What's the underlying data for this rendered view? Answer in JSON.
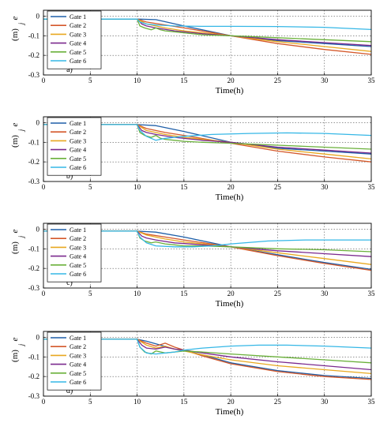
{
  "chart_data": [
    {
      "type": "line",
      "panel_label": "a)",
      "xlabel": "Time(h)",
      "ylabel_main": "e",
      "ylabel_sub": "j",
      "ylabel_unit": "(m)",
      "xlim": [
        0,
        35
      ],
      "ylim": [
        -0.3,
        0.03
      ],
      "xticks": [
        0,
        5,
        10,
        15,
        20,
        25,
        30,
        35
      ],
      "yticks": [
        0,
        -0.1,
        -0.2,
        -0.3
      ],
      "ytick_labels": [
        "0",
        "-0.1",
        "-0.2",
        "-0.3"
      ],
      "grid": true,
      "legend_position": "top-left",
      "series": [
        {
          "name": "Gate 1",
          "color": "#1f5fa8",
          "x": [
            0,
            6,
            10,
            12,
            15,
            20,
            25,
            30,
            35
          ],
          "y": [
            -0.015,
            -0.015,
            -0.015,
            -0.018,
            -0.05,
            -0.1,
            -0.125,
            -0.14,
            -0.155
          ]
        },
        {
          "name": "Gate 2",
          "color": "#d4582a",
          "x": [
            0,
            6,
            10,
            11,
            13,
            15,
            20,
            25,
            30,
            35
          ],
          "y": [
            -0.015,
            -0.015,
            -0.015,
            -0.03,
            -0.045,
            -0.06,
            -0.1,
            -0.14,
            -0.17,
            -0.195
          ]
        },
        {
          "name": "Gate 3",
          "color": "#e8a820",
          "x": [
            0,
            6,
            10,
            11,
            13,
            15,
            20,
            25,
            30,
            35
          ],
          "y": [
            -0.015,
            -0.015,
            -0.015,
            -0.04,
            -0.06,
            -0.075,
            -0.1,
            -0.13,
            -0.155,
            -0.18
          ]
        },
        {
          "name": "Gate 4",
          "color": "#7b2a8e",
          "x": [
            0,
            6,
            10,
            10.5,
            11,
            12,
            14,
            17,
            20,
            25,
            30,
            35
          ],
          "y": [
            -0.015,
            -0.015,
            -0.015,
            -0.04,
            -0.05,
            -0.06,
            -0.075,
            -0.09,
            -0.1,
            -0.12,
            -0.135,
            -0.15
          ]
        },
        {
          "name": "Gate 5",
          "color": "#6ab03a",
          "x": [
            0,
            6,
            10,
            10.3,
            10.8,
            11.5,
            12,
            12.5,
            13,
            14,
            15,
            17,
            20,
            25,
            30,
            35
          ],
          "y": [
            -0.015,
            -0.015,
            -0.015,
            -0.05,
            -0.06,
            -0.07,
            -0.06,
            -0.07,
            -0.075,
            -0.08,
            -0.085,
            -0.095,
            -0.1,
            -0.11,
            -0.12,
            -0.13
          ]
        },
        {
          "name": "Gate 6",
          "color": "#35b7e6",
          "x": [
            0,
            6,
            10,
            10.3,
            11,
            12,
            14,
            17,
            20,
            25,
            30,
            35
          ],
          "y": [
            -0.015,
            -0.015,
            -0.015,
            -0.03,
            -0.04,
            -0.045,
            -0.05,
            -0.052,
            -0.052,
            -0.053,
            -0.057,
            -0.068
          ]
        }
      ]
    },
    {
      "type": "line",
      "panel_label": "b)",
      "xlabel": "Time(h)",
      "ylabel_main": "e",
      "ylabel_sub": "j",
      "ylabel_unit": "(m)",
      "xlim": [
        0,
        35
      ],
      "ylim": [
        -0.3,
        0.03
      ],
      "xticks": [
        0,
        5,
        10,
        15,
        20,
        25,
        30,
        35
      ],
      "yticks": [
        0,
        -0.1,
        -0.2,
        -0.3
      ],
      "ytick_labels": [
        "0",
        "-0.1",
        "-0.2",
        "-0.3"
      ],
      "grid": true,
      "legend_position": "top-left",
      "series": [
        {
          "name": "Gate 1",
          "color": "#1f5fa8",
          "x": [
            0,
            6,
            10,
            12,
            15,
            20,
            25,
            30,
            35
          ],
          "y": [
            -0.01,
            -0.01,
            -0.01,
            -0.015,
            -0.045,
            -0.1,
            -0.13,
            -0.145,
            -0.16
          ]
        },
        {
          "name": "Gate 2",
          "color": "#d4582a",
          "x": [
            0,
            6,
            10,
            11,
            13,
            15,
            20,
            25,
            30,
            35
          ],
          "y": [
            -0.01,
            -0.01,
            -0.01,
            -0.03,
            -0.05,
            -0.065,
            -0.105,
            -0.145,
            -0.175,
            -0.2
          ]
        },
        {
          "name": "Gate 3",
          "color": "#e8a820",
          "x": [
            0,
            6,
            10,
            11,
            13,
            15,
            20,
            25,
            30,
            35
          ],
          "y": [
            -0.01,
            -0.01,
            -0.01,
            -0.04,
            -0.06,
            -0.075,
            -0.1,
            -0.135,
            -0.16,
            -0.185
          ]
        },
        {
          "name": "Gate 4",
          "color": "#7b2a8e",
          "x": [
            0,
            6,
            10,
            10.5,
            11,
            12,
            14,
            17,
            20,
            25,
            30,
            35
          ],
          "y": [
            -0.01,
            -0.01,
            -0.01,
            -0.04,
            -0.05,
            -0.06,
            -0.075,
            -0.09,
            -0.1,
            -0.125,
            -0.14,
            -0.155
          ]
        },
        {
          "name": "Gate 5",
          "color": "#6ab03a",
          "x": [
            0,
            6,
            10,
            10.3,
            10.8,
            11.5,
            12,
            12.5,
            13,
            14,
            15,
            17,
            20,
            25,
            30,
            35
          ],
          "y": [
            -0.01,
            -0.01,
            -0.01,
            -0.05,
            -0.065,
            -0.075,
            -0.065,
            -0.08,
            -0.085,
            -0.09,
            -0.095,
            -0.1,
            -0.105,
            -0.115,
            -0.125,
            -0.135
          ]
        },
        {
          "name": "Gate 6",
          "color": "#35b7e6",
          "x": [
            0,
            6,
            10,
            10.3,
            11,
            12,
            13,
            15,
            18,
            22,
            26,
            30,
            35
          ],
          "y": [
            -0.01,
            -0.01,
            -0.01,
            -0.04,
            -0.07,
            -0.09,
            -0.08,
            -0.07,
            -0.06,
            -0.055,
            -0.052,
            -0.055,
            -0.065
          ]
        }
      ]
    },
    {
      "type": "line",
      "panel_label": "c)",
      "xlabel": "Time(h)",
      "ylabel_main": "e",
      "ylabel_sub": "j",
      "ylabel_unit": "(m)",
      "xlim": [
        0,
        35
      ],
      "ylim": [
        -0.3,
        0.03
      ],
      "xticks": [
        0,
        5,
        10,
        15,
        20,
        25,
        30,
        35
      ],
      "yticks": [
        0,
        -0.1,
        -0.2,
        -0.3
      ],
      "ytick_labels": [
        "0",
        "-0.1",
        "-0.2",
        "-0.3"
      ],
      "grid": true,
      "legend_position": "top-left",
      "series": [
        {
          "name": "Gate 1",
          "color": "#1f5fa8",
          "x": [
            0,
            6,
            10,
            12,
            15,
            20,
            25,
            30,
            35
          ],
          "y": [
            -0.01,
            -0.01,
            -0.01,
            -0.015,
            -0.04,
            -0.09,
            -0.13,
            -0.17,
            -0.205
          ]
        },
        {
          "name": "Gate 2",
          "color": "#d4582a",
          "x": [
            0,
            6,
            10,
            11,
            13,
            15,
            20,
            25,
            30,
            35
          ],
          "y": [
            -0.01,
            -0.01,
            -0.01,
            -0.025,
            -0.04,
            -0.055,
            -0.09,
            -0.135,
            -0.175,
            -0.21
          ]
        },
        {
          "name": "Gate 3",
          "color": "#e8a820",
          "x": [
            0,
            6,
            10,
            11,
            13,
            15,
            20,
            25,
            30,
            35
          ],
          "y": [
            -0.01,
            -0.01,
            -0.01,
            -0.03,
            -0.05,
            -0.065,
            -0.09,
            -0.12,
            -0.15,
            -0.18
          ]
        },
        {
          "name": "Gate 4",
          "color": "#7b2a8e",
          "x": [
            0,
            6,
            10,
            10.5,
            11,
            12,
            14,
            17,
            20,
            25,
            30,
            35
          ],
          "y": [
            -0.01,
            -0.01,
            -0.01,
            -0.035,
            -0.045,
            -0.055,
            -0.07,
            -0.08,
            -0.09,
            -0.11,
            -0.125,
            -0.14
          ]
        },
        {
          "name": "Gate 5",
          "color": "#6ab03a",
          "x": [
            0,
            6,
            10,
            10.3,
            10.8,
            11.5,
            12,
            13,
            14,
            15,
            17,
            20,
            25,
            30,
            35
          ],
          "y": [
            -0.01,
            -0.01,
            -0.01,
            -0.045,
            -0.06,
            -0.07,
            -0.065,
            -0.075,
            -0.08,
            -0.085,
            -0.085,
            -0.09,
            -0.1,
            -0.105,
            -0.115
          ]
        },
        {
          "name": "Gate 6",
          "color": "#35b7e6",
          "x": [
            0,
            6,
            10,
            10.3,
            11,
            12,
            14,
            16,
            18,
            20,
            24,
            28,
            32,
            35
          ],
          "y": [
            -0.01,
            -0.01,
            -0.01,
            -0.04,
            -0.07,
            -0.085,
            -0.09,
            -0.09,
            -0.085,
            -0.075,
            -0.06,
            -0.055,
            -0.055,
            -0.055
          ]
        }
      ]
    },
    {
      "type": "line",
      "panel_label": "d)",
      "xlabel": "Time(h)",
      "ylabel_main": "e",
      "ylabel_sub": "j",
      "ylabel_unit": "(m)",
      "xlim": [
        0,
        35
      ],
      "ylim": [
        -0.3,
        0.03
      ],
      "xticks": [
        0,
        5,
        10,
        15,
        20,
        25,
        30,
        35
      ],
      "yticks": [
        0,
        -0.1,
        -0.2,
        -0.3
      ],
      "ytick_labels": [
        "0",
        "-0.1",
        "-0.2",
        "-0.3"
      ],
      "grid": true,
      "legend_position": "top-left",
      "series": [
        {
          "name": "Gate 1",
          "color": "#1f5fa8",
          "x": [
            0,
            6,
            10,
            11,
            12.5,
            14,
            15,
            17,
            20,
            25,
            30,
            35
          ],
          "y": [
            -0.01,
            -0.01,
            -0.01,
            -0.02,
            -0.04,
            -0.06,
            -0.065,
            -0.09,
            -0.13,
            -0.17,
            -0.195,
            -0.21
          ]
        },
        {
          "name": "Gate 2",
          "color": "#d4582a",
          "x": [
            0,
            6,
            10,
            11,
            12,
            13,
            14,
            15,
            17,
            20,
            25,
            30,
            35
          ],
          "y": [
            -0.01,
            -0.01,
            -0.01,
            -0.03,
            -0.045,
            -0.03,
            -0.05,
            -0.065,
            -0.095,
            -0.135,
            -0.175,
            -0.2,
            -0.215
          ]
        },
        {
          "name": "Gate 3",
          "color": "#e8a820",
          "x": [
            0,
            6,
            10,
            11,
            12,
            13,
            14,
            15,
            17,
            20,
            25,
            30,
            35
          ],
          "y": [
            -0.01,
            -0.01,
            -0.01,
            -0.04,
            -0.055,
            -0.045,
            -0.06,
            -0.07,
            -0.09,
            -0.115,
            -0.145,
            -0.165,
            -0.185
          ]
        },
        {
          "name": "Gate 4",
          "color": "#7b2a8e",
          "x": [
            0,
            6,
            10,
            10.5,
            11,
            12,
            13,
            14,
            15,
            17,
            20,
            25,
            30,
            35
          ],
          "y": [
            -0.01,
            -0.01,
            -0.01,
            -0.04,
            -0.055,
            -0.06,
            -0.05,
            -0.06,
            -0.065,
            -0.08,
            -0.1,
            -0.125,
            -0.145,
            -0.165
          ]
        },
        {
          "name": "Gate 5",
          "color": "#6ab03a",
          "x": [
            0,
            6,
            10,
            10.3,
            10.8,
            11.5,
            12,
            13,
            14,
            15,
            17,
            20,
            25,
            30,
            35
          ],
          "y": [
            -0.01,
            -0.01,
            -0.01,
            -0.05,
            -0.075,
            -0.085,
            -0.07,
            -0.08,
            -0.075,
            -0.07,
            -0.075,
            -0.085,
            -0.1,
            -0.115,
            -0.13
          ]
        },
        {
          "name": "Gate 6",
          "color": "#35b7e6",
          "x": [
            0,
            6,
            10,
            10.3,
            11,
            12,
            13,
            14,
            15,
            17,
            20,
            23,
            26,
            30,
            35
          ],
          "y": [
            -0.01,
            -0.01,
            -0.01,
            -0.05,
            -0.08,
            -0.085,
            -0.08,
            -0.075,
            -0.065,
            -0.055,
            -0.045,
            -0.04,
            -0.04,
            -0.045,
            -0.055
          ]
        }
      ]
    }
  ]
}
